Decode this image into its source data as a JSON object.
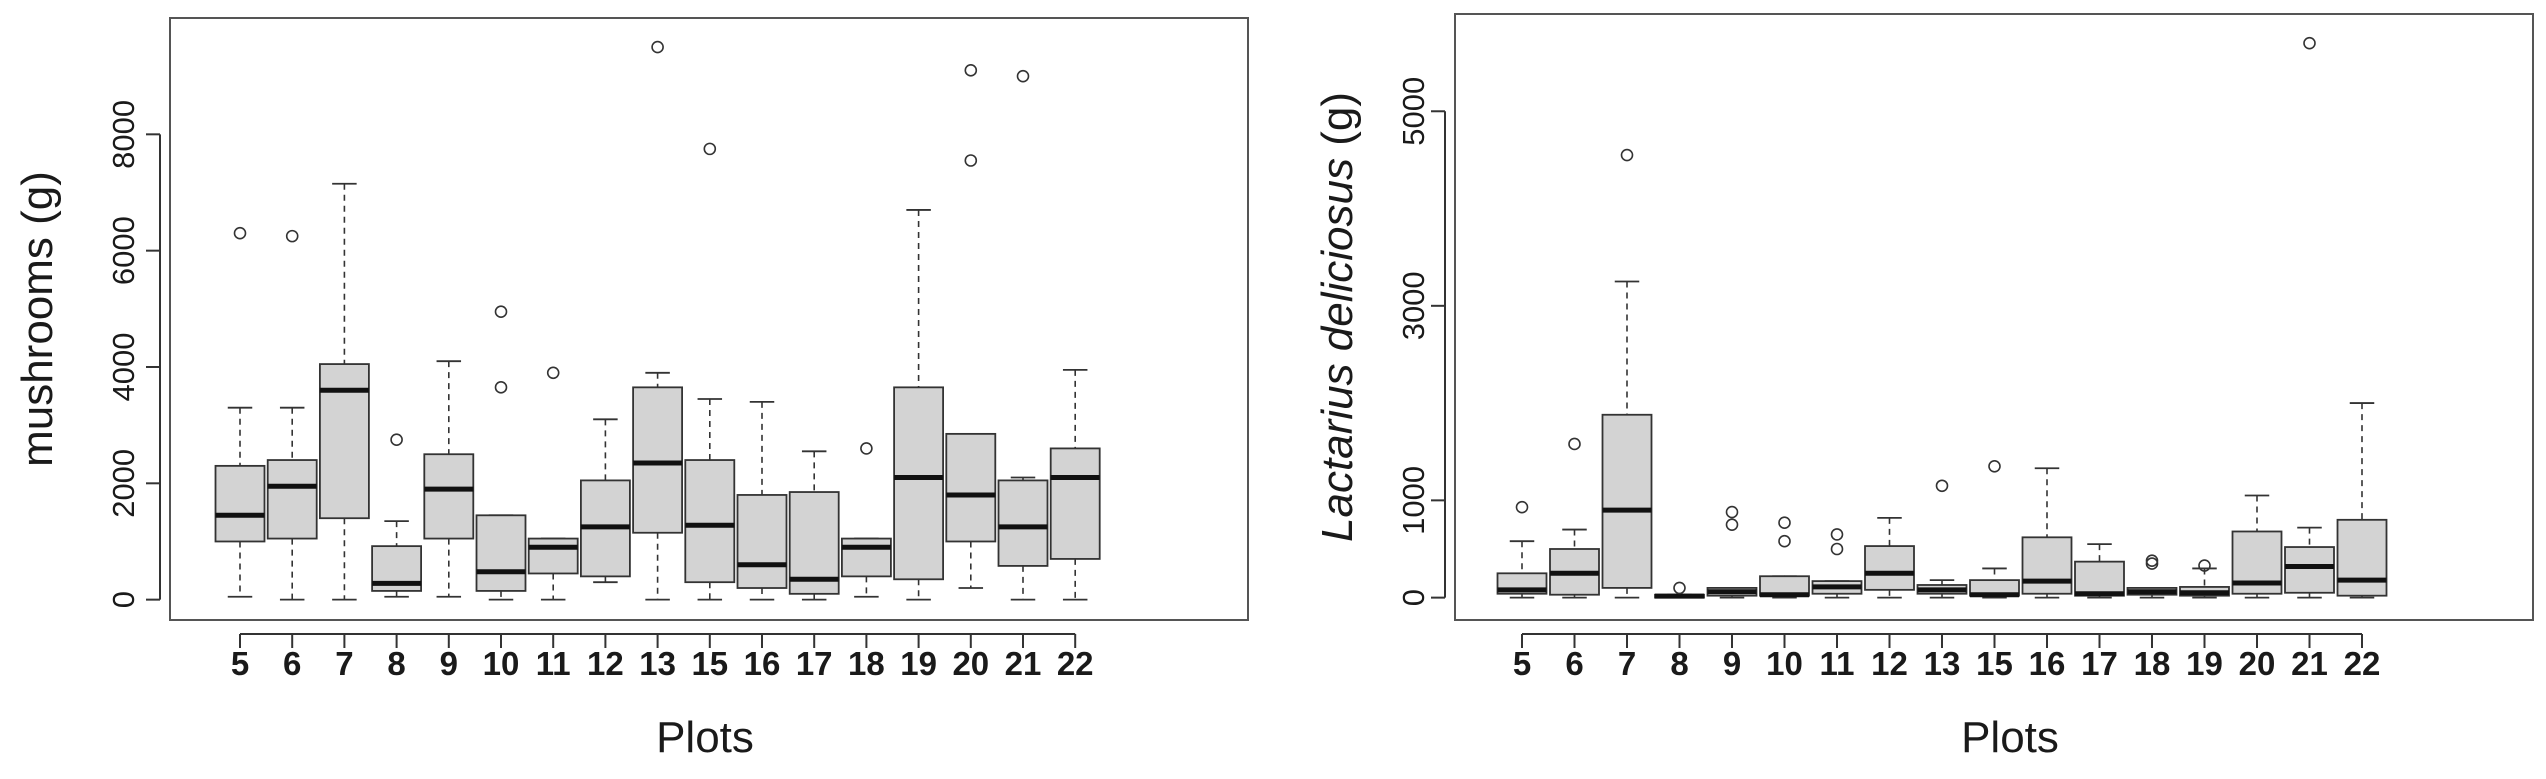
{
  "chart_data": [
    {
      "type": "boxplot",
      "xlabel": "Plots",
      "ylabel": "mushrooms (g)",
      "ylabel_parts": [
        {
          "text": "mushrooms (g)",
          "italic": false
        }
      ],
      "ylim": [
        -350,
        10000
      ],
      "yticks": [
        0,
        2000,
        4000,
        6000,
        8000
      ],
      "categories": [
        "5",
        "6",
        "7",
        "8",
        "9",
        "10",
        "11",
        "12",
        "13",
        "15",
        "16",
        "17",
        "18",
        "19",
        "20",
        "21",
        "22"
      ],
      "boxes": [
        {
          "min": 50,
          "q1": 1000,
          "median": 1450,
          "q3": 2300,
          "max": 3300,
          "outliers": [
            6300
          ]
        },
        {
          "min": 0,
          "q1": 1050,
          "median": 1950,
          "q3": 2400,
          "max": 3300,
          "outliers": [
            6250
          ]
        },
        {
          "min": 0,
          "q1": 1400,
          "median": 3600,
          "q3": 4050,
          "max": 7150,
          "outliers": []
        },
        {
          "min": 50,
          "q1": 150,
          "median": 280,
          "q3": 920,
          "max": 1350,
          "outliers": [
            2750
          ]
        },
        {
          "min": 50,
          "q1": 1050,
          "median": 1900,
          "q3": 2500,
          "max": 4100,
          "outliers": []
        },
        {
          "min": 0,
          "q1": 150,
          "median": 480,
          "q3": 1450,
          "max": 1450,
          "outliers": [
            3650,
            4950
          ]
        },
        {
          "min": 0,
          "q1": 450,
          "median": 900,
          "q3": 1050,
          "max": 1050,
          "outliers": [
            3900
          ]
        },
        {
          "min": 300,
          "q1": 400,
          "median": 1250,
          "q3": 2050,
          "max": 3100,
          "outliers": []
        },
        {
          "min": 0,
          "q1": 1150,
          "median": 2350,
          "q3": 3650,
          "max": 3900,
          "outliers": [
            9500
          ]
        },
        {
          "min": 0,
          "q1": 300,
          "median": 1280,
          "q3": 2400,
          "max": 3450,
          "outliers": [
            7750
          ]
        },
        {
          "min": 0,
          "q1": 200,
          "median": 600,
          "q3": 1800,
          "max": 3400,
          "outliers": []
        },
        {
          "min": 0,
          "q1": 100,
          "median": 350,
          "q3": 1850,
          "max": 2550,
          "outliers": []
        },
        {
          "min": 50,
          "q1": 400,
          "median": 900,
          "q3": 1050,
          "max": 1050,
          "outliers": [
            2600
          ]
        },
        {
          "min": 0,
          "q1": 350,
          "median": 2100,
          "q3": 3650,
          "max": 6700,
          "outliers": []
        },
        {
          "min": 200,
          "q1": 1000,
          "median": 1800,
          "q3": 2850,
          "max": 2850,
          "outliers": [
            7550,
            9100
          ]
        },
        {
          "min": 0,
          "q1": 580,
          "median": 1250,
          "q3": 2050,
          "max": 2100,
          "outliers": [
            9000
          ]
        },
        {
          "min": 0,
          "q1": 700,
          "median": 2100,
          "q3": 2600,
          "max": 3950,
          "outliers": []
        }
      ]
    },
    {
      "type": "boxplot",
      "xlabel": "Plots",
      "ylabel": "Lactarius deliciosus (g)",
      "ylabel_parts": [
        {
          "text": "Lactarius deliciosus",
          "italic": true
        },
        {
          "text": " (g)",
          "italic": false
        }
      ],
      "ylim": [
        -230,
        6000
      ],
      "yticks": [
        0,
        1000,
        3000,
        5000
      ],
      "categories": [
        "5",
        "6",
        "7",
        "8",
        "9",
        "10",
        "11",
        "12",
        "13",
        "15",
        "16",
        "17",
        "18",
        "19",
        "20",
        "21",
        "22"
      ],
      "boxes": [
        {
          "min": 0,
          "q1": 40,
          "median": 80,
          "q3": 250,
          "max": 580,
          "outliers": [
            930
          ]
        },
        {
          "min": 0,
          "q1": 30,
          "median": 250,
          "q3": 500,
          "max": 700,
          "outliers": [
            1580
          ]
        },
        {
          "min": 0,
          "q1": 100,
          "median": 900,
          "q3": 1880,
          "max": 3250,
          "outliers": [
            4550
          ]
        },
        {
          "min": 0,
          "q1": 0,
          "median": 15,
          "q3": 30,
          "max": 30,
          "outliers": [
            100
          ]
        },
        {
          "min": 0,
          "q1": 20,
          "median": 60,
          "q3": 100,
          "max": 100,
          "outliers": [
            750,
            880
          ]
        },
        {
          "min": 0,
          "q1": 20,
          "median": 30,
          "q3": 220,
          "max": 220,
          "outliers": [
            580,
            770
          ]
        },
        {
          "min": 0,
          "q1": 40,
          "median": 110,
          "q3": 170,
          "max": 170,
          "outliers": [
            500,
            650
          ]
        },
        {
          "min": 0,
          "q1": 80,
          "median": 250,
          "q3": 530,
          "max": 820,
          "outliers": []
        },
        {
          "min": 0,
          "q1": 40,
          "median": 80,
          "q3": 130,
          "max": 180,
          "outliers": [
            1150
          ]
        },
        {
          "min": 0,
          "q1": 20,
          "median": 30,
          "q3": 180,
          "max": 300,
          "outliers": [
            1350
          ]
        },
        {
          "min": 0,
          "q1": 40,
          "median": 170,
          "q3": 620,
          "max": 1330,
          "outliers": []
        },
        {
          "min": 0,
          "q1": 20,
          "median": 40,
          "q3": 370,
          "max": 550,
          "outliers": []
        },
        {
          "min": 0,
          "q1": 30,
          "median": 60,
          "q3": 100,
          "max": 100,
          "outliers": [
            350,
            380
          ]
        },
        {
          "min": 0,
          "q1": 20,
          "median": 50,
          "q3": 110,
          "max": 300,
          "outliers": [
            330
          ]
        },
        {
          "min": 0,
          "q1": 40,
          "median": 150,
          "q3": 680,
          "max": 1050,
          "outliers": []
        },
        {
          "min": 0,
          "q1": 50,
          "median": 320,
          "q3": 520,
          "max": 720,
          "outliers": [
            5700
          ]
        },
        {
          "min": 0,
          "q1": 20,
          "median": 180,
          "q3": 800,
          "max": 2000,
          "outliers": []
        }
      ]
    }
  ]
}
